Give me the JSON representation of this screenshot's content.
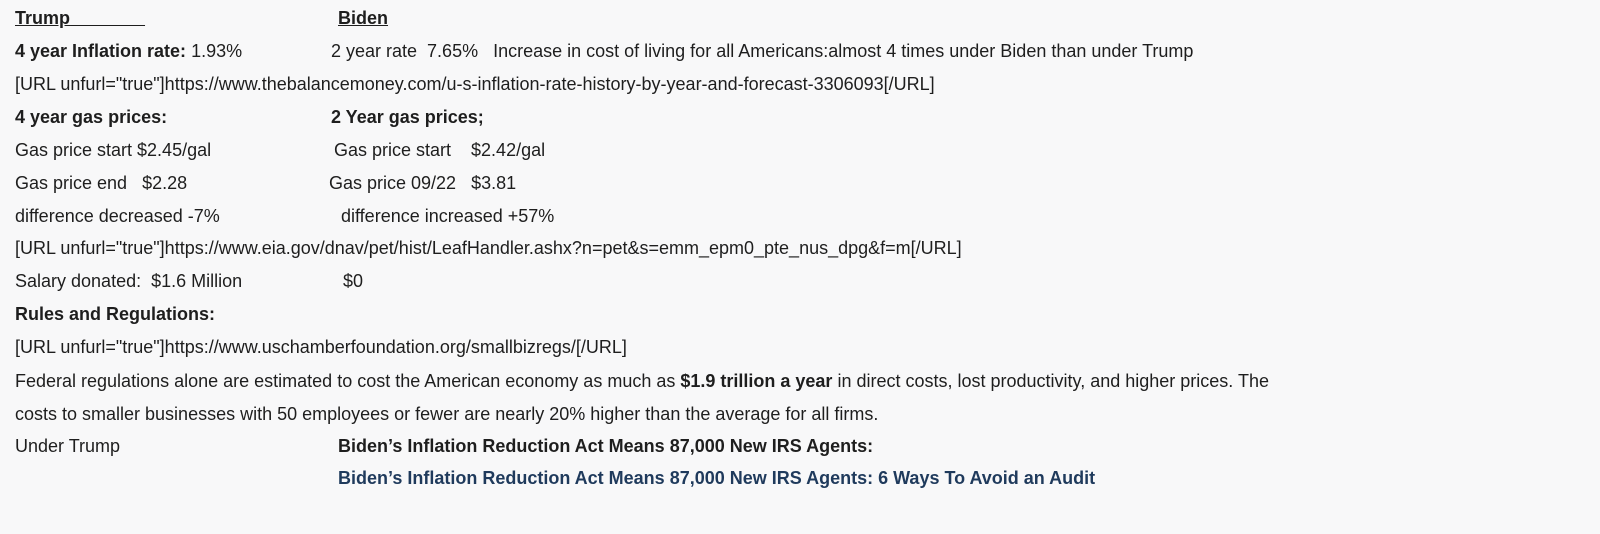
{
  "header": {
    "trump": "Trump",
    "trump_underline": "               ",
    "biden": "Biden"
  },
  "inflation": {
    "trump_label": "4 year Inflation rate:",
    "trump_value": " 1.93%",
    "biden": "2 year rate  7.65%   Increase in cost of living for all Americans:almost 4 times under Biden than under Trump",
    "source": "[URL unfurl=\"true\"]https://www.thebalancemoney.com/u-s-inflation-rate-history-by-year-and-forecast-3306093[/URL]"
  },
  "gas": {
    "trump_heading": "4 year gas prices:",
    "biden_heading": "2 Year gas prices;",
    "trump_start": "Gas price start $2.45/gal",
    "biden_start": "Gas price start    $2.42/gal",
    "trump_end": "Gas price end   $2.28",
    "biden_end": "Gas price 09/22   $3.81",
    "trump_diff": "difference decreased -7%",
    "biden_diff": "difference increased +57%",
    "source": "[URL unfurl=\"true\"]https://www.eia.gov/dnav/pet/hist/LeafHandler.ashx?n=pet&s=emm_epm0_pte_nus_dpg&f=m[/URL]"
  },
  "salary": {
    "label": "Salary donated:  $1.6 Million",
    "biden": "$0"
  },
  "regulations": {
    "heading": "Rules and Regulations:",
    "source": "[URL unfurl=\"true\"]https://www.uschamberfoundation.org/smallbizregs/[/URL]",
    "para_before": "Federal regulations alone are estimated to cost the American economy as much as ",
    "para_bold": "$1.9 trillion a year",
    "para_after": " in direct costs, lost productivity, and higher prices. The",
    "para_line2": "costs to smaller businesses with 50 employees or fewer are nearly 20% higher than the average for all firms."
  },
  "irs": {
    "trump": "Under Trump",
    "heading": "Biden’s Inflation Reduction Act Means 87,000 New IRS Agents:",
    "link": "Biden’s Inflation Reduction Act Means 87,000 New IRS Agents: 6 Ways To Avoid an Audit",
    "link_color": "#1f3a5c"
  }
}
